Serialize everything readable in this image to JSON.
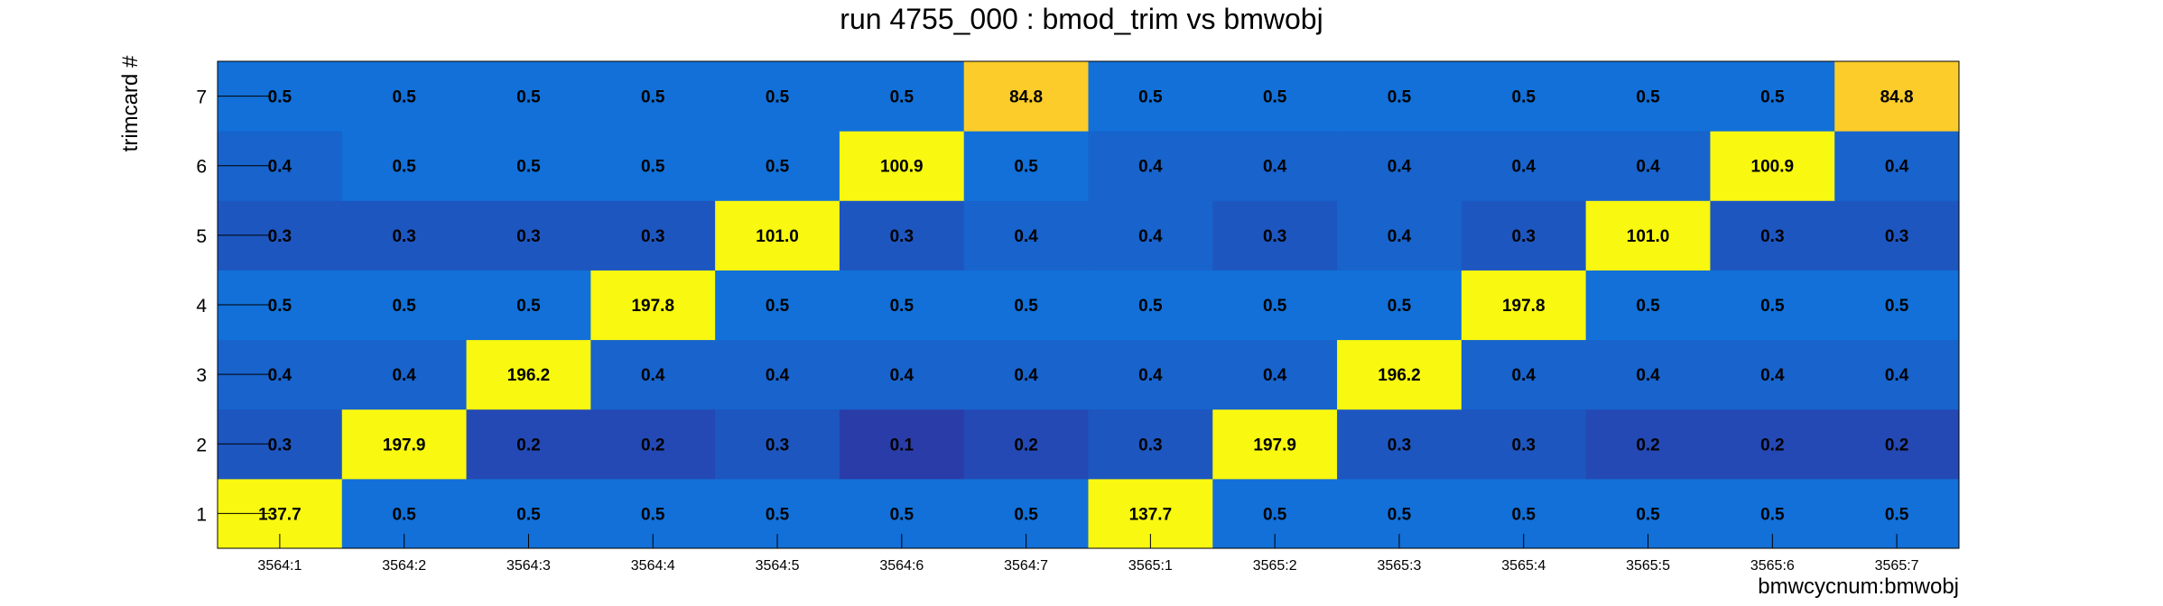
{
  "chart_data": {
    "type": "heatmap",
    "title": "run 4755_000 : bmod_trim vs bmwobj",
    "xlabel": "bmwcycnum:bmwobj",
    "ylabel": "trimcard #",
    "x_categories": [
      "3564:1",
      "3564:2",
      "3564:3",
      "3564:4",
      "3564:5",
      "3564:6",
      "3564:7",
      "3565:1",
      "3565:2",
      "3565:3",
      "3565:4",
      "3565:5",
      "3565:6",
      "3565:7"
    ],
    "y_categories": [
      "1",
      "2",
      "3",
      "4",
      "5",
      "6",
      "7"
    ],
    "values": [
      [
        "137.7",
        "0.5",
        "0.5",
        "0.5",
        "0.5",
        "0.5",
        "0.5",
        "137.7",
        "0.5",
        "0.5",
        "0.5",
        "0.5",
        "0.5",
        "0.5"
      ],
      [
        "0.3",
        "197.9",
        "0.2",
        "0.2",
        "0.3",
        "0.1",
        "0.2",
        "0.3",
        "197.9",
        "0.3",
        "0.3",
        "0.2",
        "0.2",
        "0.2"
      ],
      [
        "0.4",
        "0.4",
        "196.2",
        "0.4",
        "0.4",
        "0.4",
        "0.4",
        "0.4",
        "0.4",
        "196.2",
        "0.4",
        "0.4",
        "0.4",
        "0.4"
      ],
      [
        "0.5",
        "0.5",
        "0.5",
        "197.8",
        "0.5",
        "0.5",
        "0.5",
        "0.5",
        "0.5",
        "0.5",
        "197.8",
        "0.5",
        "0.5",
        "0.5"
      ],
      [
        "0.3",
        "0.3",
        "0.3",
        "0.3",
        "101.0",
        "0.3",
        "0.4",
        "0.4",
        "0.3",
        "0.4",
        "0.3",
        "101.0",
        "0.3",
        "0.3"
      ],
      [
        "0.4",
        "0.5",
        "0.5",
        "0.5",
        "0.5",
        "100.9",
        "0.5",
        "0.4",
        "0.4",
        "0.4",
        "0.4",
        "0.4",
        "100.9",
        "0.4"
      ],
      [
        "0.5",
        "0.5",
        "0.5",
        "0.5",
        "0.5",
        "0.5",
        "84.8",
        "0.5",
        "0.5",
        "0.5",
        "0.5",
        "0.5",
        "0.5",
        "84.8"
      ]
    ],
    "colors": {
      "low": "#2a3ca8",
      "mid": "#1270d8",
      "high_yellow": "#f8f810",
      "orange": "#fbcc2a"
    },
    "grid": false,
    "legend": "none"
  }
}
